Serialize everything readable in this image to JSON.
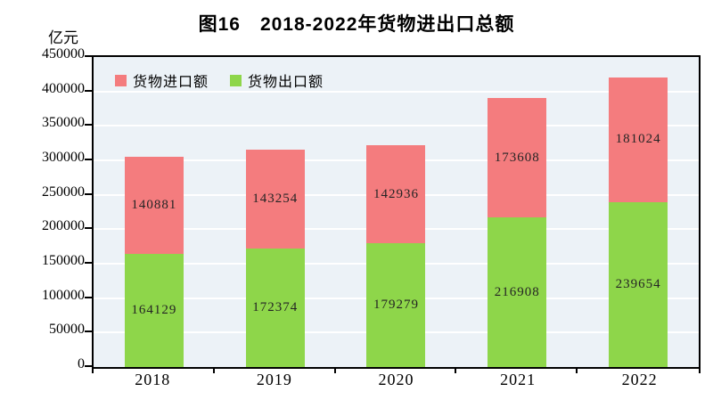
{
  "figure": {
    "title": "图16　2018-2022年货物进出口总额",
    "unit_label": "亿元"
  },
  "legend": [
    {
      "label": "货物进口额",
      "color": "#f47c7e"
    },
    {
      "label": "货物出口额",
      "color": "#8ed64a"
    }
  ],
  "chart_data": {
    "type": "bar",
    "stacked": true,
    "title": "图16　2018-2022年货物进出口总额",
    "unit": "亿元",
    "categories": [
      "2018",
      "2019",
      "2020",
      "2021",
      "2022"
    ],
    "series": [
      {
        "name": "货物出口额",
        "color": "#8ed64a",
        "values": [
          164129,
          172374,
          179279,
          216908,
          239654
        ]
      },
      {
        "name": "货物进口额",
        "color": "#f47c7e",
        "values": [
          140881,
          143254,
          142936,
          173608,
          181024
        ]
      }
    ],
    "totals": [
      305010,
      315628,
      322215,
      390516,
      420678
    ],
    "ylim": [
      0,
      450000
    ],
    "ytick_step": 50000,
    "grid": true,
    "gridline_color": "#ffffff",
    "plot_background": "#ecf2f7",
    "legend_position": "top-left-inside",
    "value_label_color": "#242424"
  }
}
